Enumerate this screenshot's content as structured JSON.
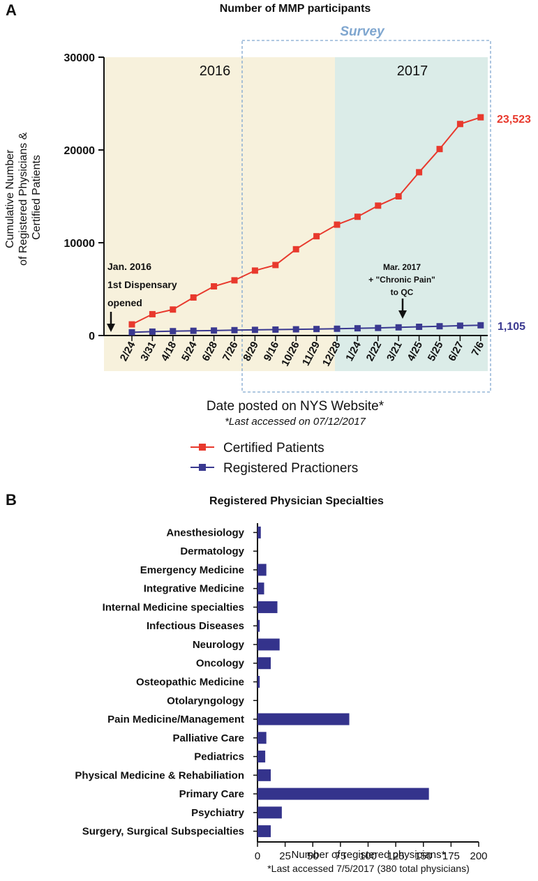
{
  "panel_a": {
    "letter": "A",
    "annotations": {
      "year_2016": "2016",
      "year_2017": "2017",
      "survey": "Survey",
      "dispensary_line1": "Jan. 2016",
      "dispensary_line2": "1st Dispensary",
      "dispensary_line3": "opened",
      "chronic_line1": "Mar. 2017",
      "chronic_line2": "+ \"Chronic Pain\"",
      "chronic_line3": "to QC",
      "end_patients": "23,523",
      "end_practitioners": "1,105"
    },
    "xlabel_note": "*Last accessed on 07/12/2017",
    "colors": {
      "patients": "#e8392d",
      "practitioners": "#3a3990",
      "shade_2016": "#f7f1dc",
      "shade_2017": "#dbece8",
      "survey_border": "#7fa6cf"
    }
  },
  "panel_b": {
    "letter": "B",
    "note": "*Last accessed 7/5/2017 (380 total physicians)",
    "colors": {
      "bar": "#34338c"
    }
  },
  "chart_data": [
    {
      "type": "line",
      "title": "Number of MMP participants",
      "xlabel": "Date posted on NYS Website*",
      "ylabel": "Cumulative Number of Registered Physicians & Certified Patients",
      "ylim": [
        0,
        30000
      ],
      "yticks": [
        "0",
        "10000",
        "20000",
        "30000"
      ],
      "categories": [
        "2/24",
        "3/31",
        "4/18",
        "5/24",
        "6/28",
        "7/26",
        "8/29",
        "9/16",
        "10/26",
        "11/29",
        "12/28",
        "1/24",
        "2/22",
        "3/21",
        "4/25",
        "5/25",
        "6/27",
        "7/6"
      ],
      "series": [
        {
          "name": "Certified Patients",
          "values": [
            1200,
            2300,
            2800,
            4100,
            5300,
            5950,
            7000,
            7600,
            9300,
            10700,
            11950,
            12800,
            14000,
            15000,
            17600,
            20100,
            22800,
            23523
          ]
        },
        {
          "name": "Registered Practioners",
          "values": [
            350,
            420,
            470,
            510,
            540,
            580,
            610,
            640,
            670,
            700,
            730,
            780,
            820,
            880,
            940,
            1000,
            1060,
            1105
          ]
        }
      ],
      "grid": false,
      "legend": "bottom"
    },
    {
      "type": "bar",
      "orientation": "horizontal",
      "title": "Registered Physician Specialties",
      "xlabel": "Number of registered physicians*",
      "ylabel": "",
      "xlim": [
        0,
        200
      ],
      "xticks": [
        "0",
        "25",
        "50",
        "75",
        "100",
        "125",
        "150",
        "175",
        "200"
      ],
      "categories": [
        "Anesthesiology",
        "Dermatology",
        "Emergency Medicine",
        "Integrative Medicine",
        "Internal Medicine specialties",
        "Infectious Diseases",
        "Neurology",
        "Oncology",
        "Osteopathic Medicine",
        "Otolaryngology",
        "Pain Medicine/Management",
        "Palliative Care",
        "Pediatrics",
        "Physical Medicine & Rehabiliation",
        "Primary Care",
        "Psychiatry",
        "Surgery, Surgical Subspecialties"
      ],
      "values": [
        3,
        0,
        8,
        6,
        18,
        2,
        20,
        12,
        2,
        0,
        83,
        8,
        7,
        12,
        155,
        22,
        12
      ],
      "grid": false
    }
  ]
}
